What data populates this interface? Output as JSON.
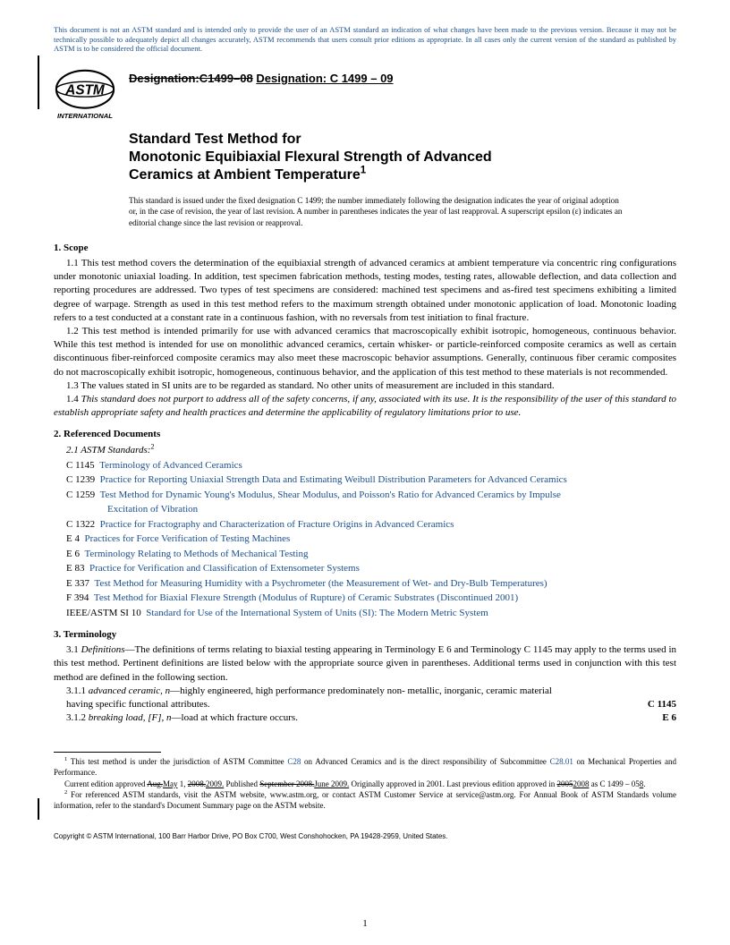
{
  "disclaimer": "This document is not an ASTM standard and is intended only to provide the user of an ASTM standard an indication of what changes have been made to the previous version. Because it may not be technically possible to adequately depict all changes accurately, ASTM recommends that users consult prior editions as appropriate. In all cases only the current version of the standard as published by ASTM is to be considered the official document.",
  "designation": {
    "old": "Designation:C1499–08",
    "new_label": "Designation: C 1499 – 09"
  },
  "logo": {
    "top_text": "ASTM",
    "bottom_text": "INTERNATIONAL"
  },
  "title": {
    "line1": "Standard Test Method for",
    "line2": "Monotonic Equibiaxial Flexural Strength of Advanced",
    "line3": "Ceramics at Ambient Temperature",
    "super": "1"
  },
  "issuance": "This standard is issued under the fixed designation C 1499; the number immediately following the designation indicates the year of original adoption or, in the case of revision, the year of last revision. A number in parentheses indicates the year of last reapproval. A superscript epsilon (ε) indicates an editorial change since the last revision or reapproval.",
  "scope": {
    "head": "1. Scope",
    "p1": "1.1 This test method covers the determination of the equibiaxial strength of advanced ceramics at ambient temperature via concentric ring configurations under monotonic uniaxial loading. In addition, test specimen fabrication methods, testing modes, testing rates, allowable deflection, and data collection and reporting procedures are addressed. Two types of test specimens are considered: machined test specimens and as-fired test specimens exhibiting a limited degree of warpage. Strength as used in this test method refers to the maximum strength obtained under monotonic application of load. Monotonic loading refers to a test conducted at a constant rate in a continuous fashion, with no reversals from test initiation to final fracture.",
    "p2": "1.2 This test method is intended primarily for use with advanced ceramics that macroscopically exhibit isotropic, homogeneous, continuous behavior. While this test method is intended for use on monolithic advanced ceramics, certain whisker- or particle-reinforced composite ceramics as well as certain discontinuous fiber-reinforced composite ceramics may also meet these macroscopic behavior assumptions. Generally, continuous fiber ceramic composites do not macroscopically exhibit isotropic, homogeneous, continuous behavior, and the application of this test method to these materials is not recommended.",
    "p3": "1.3 The values stated in SI units are to be regarded as standard. No other units of measurement are included in this standard.",
    "p4": "1.4 This standard does not purport to address all of the safety concerns, if any, associated with its use. It is the responsibility of the user of this standard to establish appropriate safety and health practices and determine the applicability of regulatory limitations prior to use."
  },
  "refs": {
    "head": "2. Referenced Documents",
    "sub": "2.1 ASTM Standards:",
    "sub_super": "2",
    "items": [
      {
        "code": "C 1145",
        "title": "Terminology of Advanced Ceramics"
      },
      {
        "code": "C 1239",
        "title": "Practice for Reporting Uniaxial Strength Data and Estimating Weibull Distribution Parameters for Advanced Ceramics"
      },
      {
        "code": "C 1259",
        "title": "Test Method for Dynamic Young's Modulus, Shear Modulus, and Poisson's Ratio for Advanced Ceramics by Impulse",
        "cont": "Excitation of Vibration"
      },
      {
        "code": "C 1322",
        "title": "Practice for Fractography and Characterization of Fracture Origins in Advanced Ceramics"
      },
      {
        "code": "E 4",
        "title": "Practices for Force Verification of Testing Machines"
      },
      {
        "code": "E 6",
        "title": "Terminology Relating to Methods of Mechanical Testing"
      },
      {
        "code": "E 83",
        "title": "Practice for Verification and Classification of Extensometer Systems"
      },
      {
        "code": "E 337",
        "title": "Test Method for Measuring Humidity with a Psychrometer (the Measurement of Wet- and Dry-Bulb Temperatures)"
      },
      {
        "code": "F 394",
        "title": "Test Method for Biaxial Flexure Strength (Modulus of Rupture) of Ceramic Substrates (Discontinued 2001)"
      },
      {
        "code": "IEEE/ASTM SI 10",
        "title": "Standard for Use of the International System of Units (SI): The Modern Metric System"
      }
    ]
  },
  "terms": {
    "head": "3. Terminology",
    "p1": "3.1 Definitions—The definitions of terms relating to biaxial testing appearing in Terminology E 6 and Terminology C 1145 may apply to the terms used in this test method. Pertinent definitions are listed below with the appropriate source given in parentheses. Additional terms used in conjunction with this test method are defined in the following section.",
    "t1_lead": "3.1.1 ",
    "t1_term": "advanced ceramic",
    "t1_pos": ", n",
    "t1_def": "—highly engineered, high performance predominately non- metallic, inorganic, ceramic material having specific functional attributes.",
    "t1_src": "C 1145",
    "t2_lead": "3.1.2 ",
    "t2_term": "breaking load, [F]",
    "t2_pos": ", n",
    "t2_def": "—load at which fracture occurs.",
    "t2_src": "E 6"
  },
  "footnotes": {
    "f1_a": " This test method is under the jurisdiction of ASTM Committee ",
    "f1_link1": "C28",
    "f1_b": " on Advanced Ceramics and is the direct responsibility of Subcommittee ",
    "f1_link2": "C28.01",
    "f1_c": " on Mechanical Properties and Performance.",
    "f1_line2_a": "Current edition approved ",
    "f1_line2_strike1": "Aug.",
    "f1_line2_ins1": "May",
    "f1_line2_b": " 1, ",
    "f1_line2_strike2": "2008.",
    "f1_line2_ins2": "2009.",
    "f1_line2_c": " Published ",
    "f1_line2_strike3": "September 2008.",
    "f1_line2_ins3": "June 2009.",
    "f1_line2_d": " Originally approved in 2001. Last previous edition approved in ",
    "f1_line2_strike4": "2005",
    "f1_line2_ins4": "2008",
    "f1_line2_e": " as C 1499 – 05",
    "f1_line2_ins5": "8",
    "f1_line2_f": ".",
    "f2": " For referenced ASTM standards, visit the ASTM website, www.astm.org, or contact ASTM Customer Service at service@astm.org. For Annual Book of ASTM Standards volume information, refer to the standard's Document Summary page on the ASTM website."
  },
  "copyright": "Copyright © ASTM International, 100 Barr Harbor Drive, PO Box C700, West Conshohocken, PA 19428-2959, United States.",
  "page": "1",
  "colors": {
    "link": "#1a4f8f",
    "text": "#000000",
    "bg": "#ffffff"
  }
}
